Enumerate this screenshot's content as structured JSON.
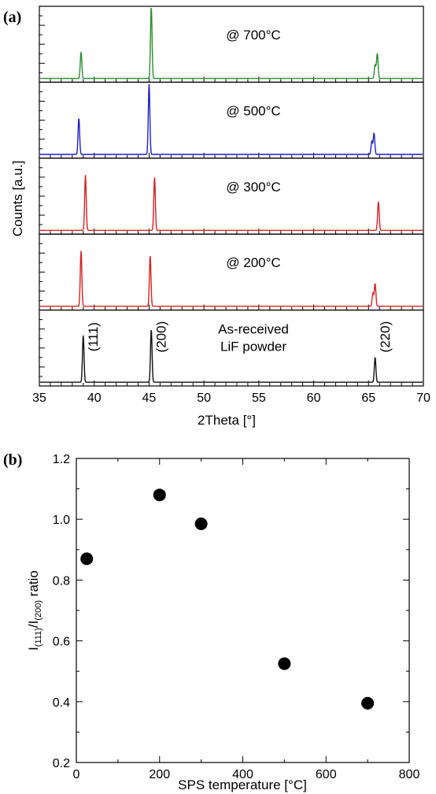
{
  "chart_data": [
    {
      "type": "line",
      "panel_label": "(a)",
      "xlabel": "2Theta [°]",
      "ylabel": "Counts [a.u.]",
      "xlim": [
        35,
        70
      ],
      "x_ticks": [
        35,
        40,
        45,
        50,
        55,
        60,
        65,
        70
      ],
      "tick_labels": [
        "35",
        "40",
        "45",
        "50",
        "55",
        "60",
        "65",
        "70"
      ],
      "grid": false,
      "series": [
        {
          "name": "@ 700°C",
          "color": "#2e8b2e",
          "baseline": 0.05,
          "peaks": [
            {
              "x": 38.8,
              "height": 0.35
            },
            {
              "x": 45.2,
              "height": 0.95
            },
            {
              "x": 65.8,
              "height": 0.33
            },
            {
              "x": 65.6,
              "height": 0.18
            }
          ]
        },
        {
          "name": "@ 500°C",
          "color": "#1f1fc8",
          "baseline": 0.05,
          "peaks": [
            {
              "x": 38.6,
              "height": 0.48
            },
            {
              "x": 45.0,
              "height": 0.93
            },
            {
              "x": 65.5,
              "height": 0.28
            },
            {
              "x": 65.3,
              "height": 0.17
            }
          ]
        },
        {
          "name": "@ 300°C",
          "color": "#d92020",
          "baseline": 0.05,
          "peaks": [
            {
              "x": 39.2,
              "height": 0.73
            },
            {
              "x": 45.5,
              "height": 0.7
            },
            {
              "x": 65.9,
              "height": 0.38
            }
          ]
        },
        {
          "name": "@ 200°C",
          "color": "#d92020",
          "baseline": 0.05,
          "peaks": [
            {
              "x": 38.8,
              "height": 0.73
            },
            {
              "x": 45.1,
              "height": 0.67
            },
            {
              "x": 65.6,
              "height": 0.3
            },
            {
              "x": 65.4,
              "height": 0.17
            }
          ]
        },
        {
          "name": "As-received",
          "name_line2": "LiF powder",
          "color": "#111111",
          "baseline": 0.05,
          "peaks": [
            {
              "x": 39.0,
              "height": 0.62
            },
            {
              "x": 45.2,
              "height": 0.7
            },
            {
              "x": 65.6,
              "height": 0.33
            }
          ],
          "peak_labels": [
            {
              "x": 39.0,
              "text": "(111)"
            },
            {
              "x": 45.2,
              "text": "(200)"
            },
            {
              "x": 65.6,
              "text": "(220)"
            }
          ]
        }
      ]
    },
    {
      "type": "scatter",
      "panel_label": "(b)",
      "xlabel": "SPS temperature [°C]",
      "ylabel": "I(111)/I(200) ratio",
      "xlim": [
        0,
        800
      ],
      "ylim": [
        0.2,
        1.2
      ],
      "x_ticks": [
        0,
        200,
        400,
        600,
        800
      ],
      "y_ticks": [
        0.2,
        0.4,
        0.6,
        0.8,
        1.0,
        1.2
      ],
      "x_tick_labels": [
        "0",
        "200",
        "400",
        "600",
        "800"
      ],
      "y_tick_labels": [
        "0.2",
        "0.4",
        "0.6",
        "0.8",
        "1.0",
        "1.2"
      ],
      "grid": false,
      "x": [
        25,
        200,
        300,
        500,
        700
      ],
      "y": [
        0.87,
        1.08,
        0.985,
        0.525,
        0.395
      ],
      "marker_color": "#000000"
    }
  ]
}
